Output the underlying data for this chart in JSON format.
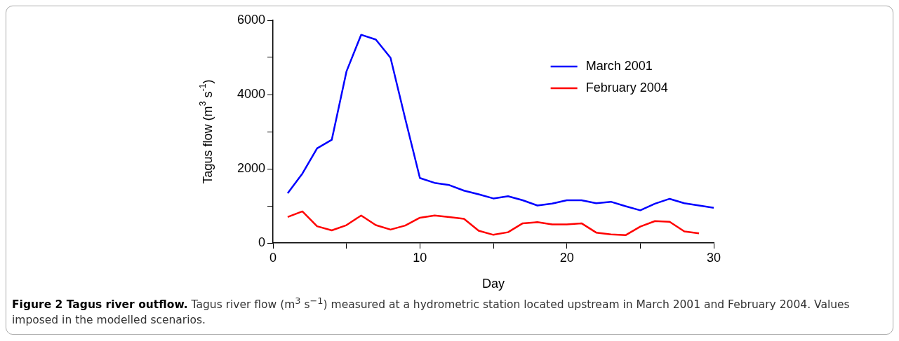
{
  "chart_data": {
    "type": "line",
    "title": "Figure 2 Tagus river outflow.",
    "annotations": [
      "Tagus river flow (m$^{3}$ s$^{−1}$) measured at a hydrometric station located upstream in March 2001 and February 2004. Values imposed in the modelled scenarios."
    ],
    "xlabel": "Day",
    "ylabel": "Tagus flow (m$^{3}$ s$^{-1}$)",
    "xlim": [
      0,
      30
    ],
    "xticks": [
      0,
      {
        "value": 5,
        "label": null
      },
      10,
      {
        "value": 15,
        "label": null
      },
      20,
      {
        "value": 25,
        "label": null
      },
      30
    ],
    "ylim": [
      0,
      6000
    ],
    "yticks": [
      0,
      {
        "value": 1000,
        "label": null
      },
      2000,
      {
        "value": 3000,
        "label": null
      },
      4000,
      {
        "value": 5000,
        "label": null
      },
      6000
    ],
    "grid": false,
    "legend": "top right",
    "marker": "none",
    "line_style": "solid",
    "x": [
      1,
      2,
      3,
      4,
      5,
      6,
      7,
      8,
      9,
      10,
      11,
      12,
      13,
      14,
      15,
      16,
      17,
      18,
      19,
      20,
      21,
      22,
      23,
      24,
      25,
      26,
      27,
      28,
      29,
      30
    ],
    "series": [
      {
        "name": "March 2001",
        "color": "#0000ff",
        "values": [
          1340,
          1870,
          2550,
          2780,
          4620,
          5610,
          5480,
          4990,
          3350,
          1750,
          1620,
          1560,
          1410,
          1310,
          1200,
          1260,
          1150,
          1010,
          1060,
          1150,
          1150,
          1070,
          1110,
          990,
          880,
          1060,
          1190,
          1070,
          1010,
          950
        ]
      },
      {
        "name": "February 2004",
        "color": "#ff0000",
        "values": [
          700,
          850,
          450,
          340,
          480,
          740,
          480,
          360,
          470,
          680,
          740,
          700,
          650,
          330,
          220,
          290,
          530,
          560,
          500,
          500,
          530,
          280,
          230,
          210,
          440,
          590,
          570,
          310,
          260,
          null
        ]
      }
    ]
  }
}
